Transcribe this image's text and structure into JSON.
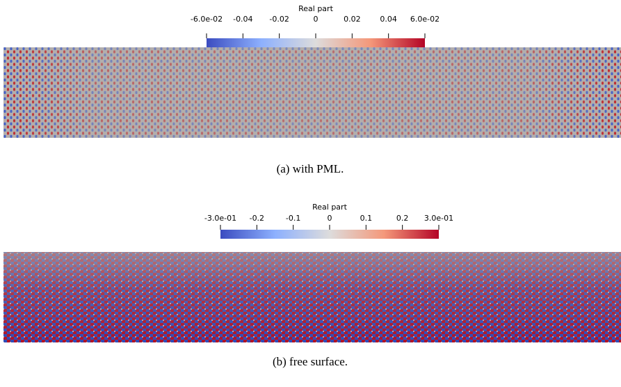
{
  "panels": [
    {
      "colorbar": {
        "title": "Real part",
        "ticks": [
          "-6.0e-02",
          "-0.04",
          "-0.02",
          "0",
          "0.02",
          "0.04",
          "6.0e-02"
        ]
      },
      "caption": "(a) with PML."
    },
    {
      "colorbar": {
        "title": "Real part",
        "ticks": [
          "-3.0e-01",
          "-0.2",
          "-0.1",
          "0",
          "0.1",
          "0.2",
          "3.0e-01"
        ]
      },
      "caption": "(b) free surface."
    }
  ]
}
